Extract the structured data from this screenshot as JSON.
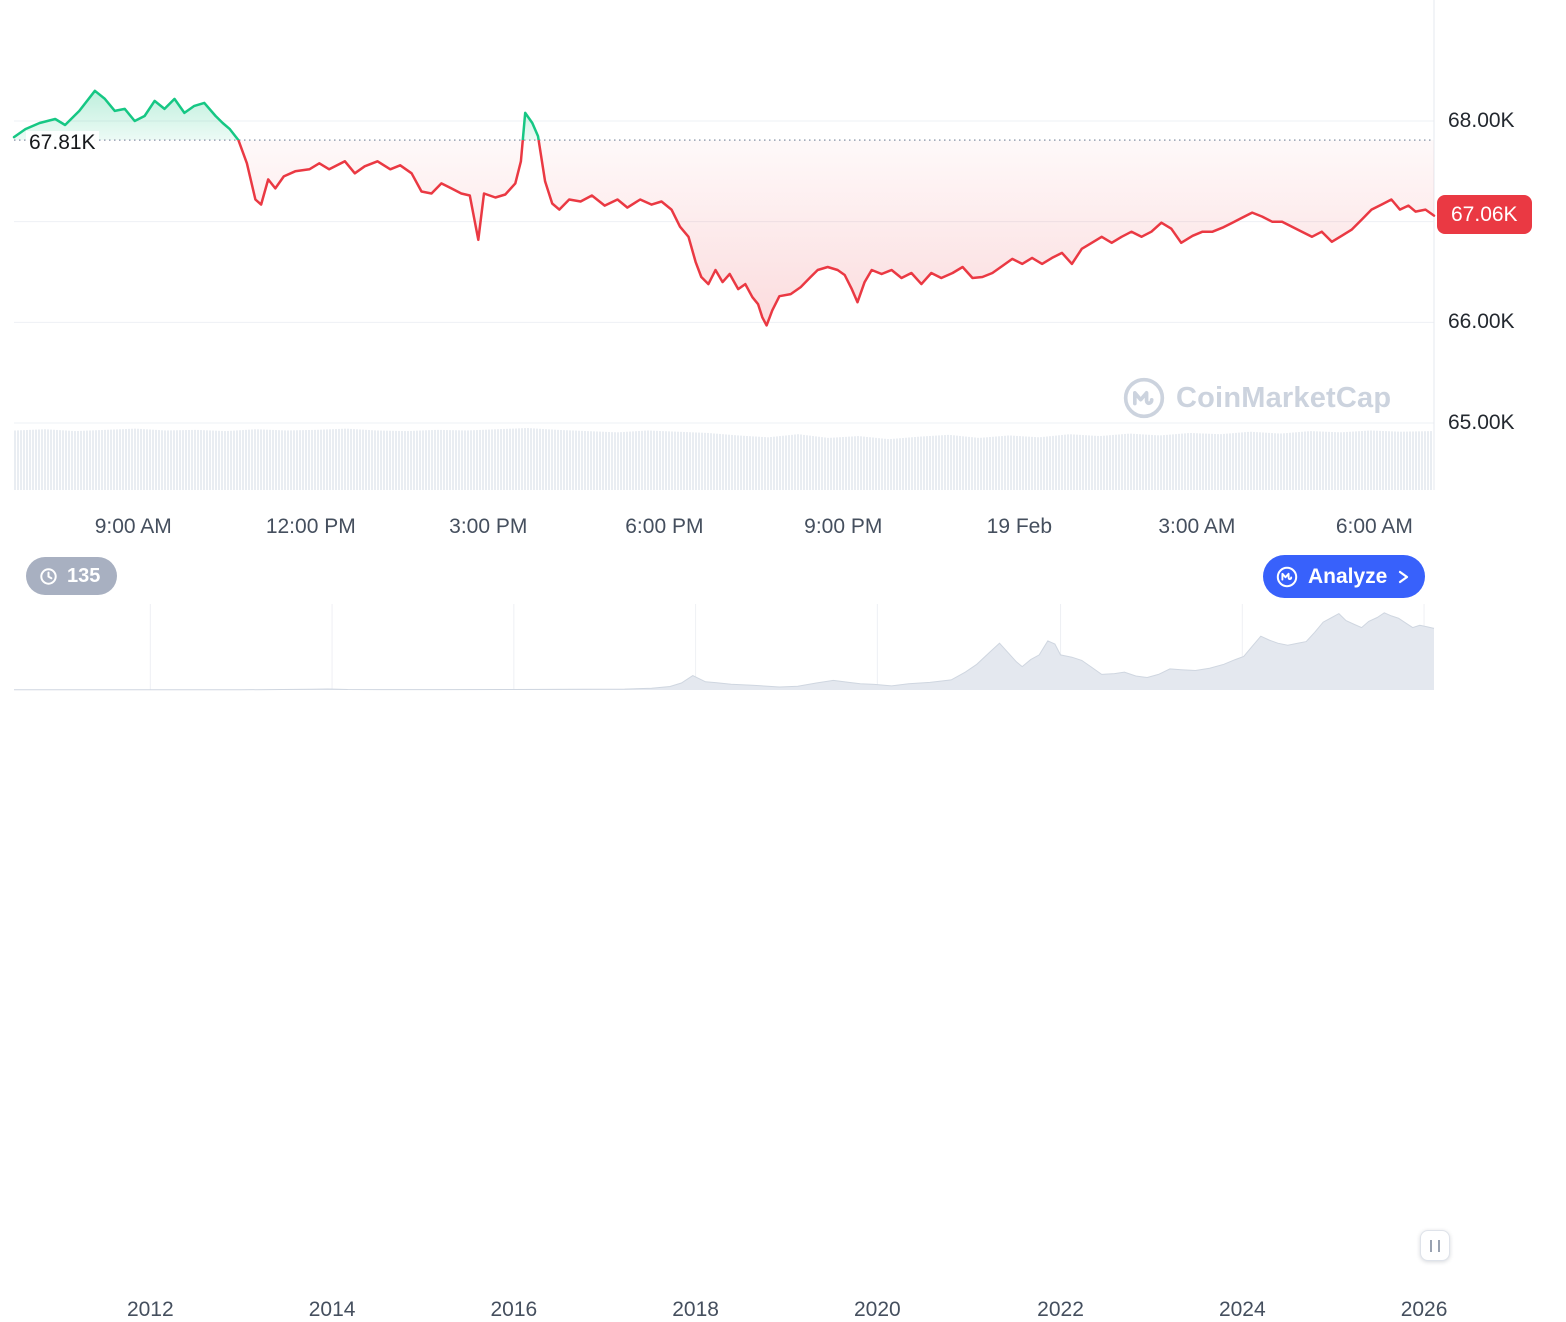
{
  "chart_data": {
    "type": "line",
    "title": "Cryptocurrency intraday price chart with baseline comparison, volume bars and multi-year navigator",
    "legend_position": "none",
    "grid": true,
    "main": {
      "unit": "K USD",
      "ylim": [
        64.8,
        68.6
      ],
      "baseline": {
        "value": 67.81,
        "label": "67.81K"
      },
      "current": {
        "value": 67.06,
        "label": "67.06K"
      },
      "colors": {
        "up": "#16c784",
        "down": "#ea3943",
        "baseline_dots": "#97a1b2"
      },
      "y_grid": [
        68,
        67,
        66,
        65
      ],
      "y_ticks": [
        {
          "value": 68,
          "label": "68.00K"
        },
        {
          "value": 66,
          "label": "66.00K"
        },
        {
          "value": 65,
          "label": "65.00K"
        }
      ],
      "x_ticks": [
        {
          "t": 0.084,
          "label": "9:00 AM"
        },
        {
          "t": 0.209,
          "label": "12:00 PM"
        },
        {
          "t": 0.334,
          "label": "3:00 PM"
        },
        {
          "t": 0.458,
          "label": "6:00 PM"
        },
        {
          "t": 0.584,
          "label": "9:00 PM"
        },
        {
          "t": 0.708,
          "label": "19 Feb"
        },
        {
          "t": 0.833,
          "label": "3:00 AM"
        },
        {
          "t": 0.958,
          "label": "6:00 AM"
        }
      ],
      "series": [
        [
          0.0,
          67.84
        ],
        [
          0.008,
          67.92
        ],
        [
          0.018,
          67.98
        ],
        [
          0.029,
          68.02
        ],
        [
          0.036,
          67.96
        ],
        [
          0.046,
          68.1
        ],
        [
          0.057,
          68.3
        ],
        [
          0.064,
          68.22
        ],
        [
          0.071,
          68.1
        ],
        [
          0.078,
          68.12
        ],
        [
          0.085,
          68.0
        ],
        [
          0.092,
          68.05
        ],
        [
          0.099,
          68.2
        ],
        [
          0.106,
          68.12
        ],
        [
          0.113,
          68.22
        ],
        [
          0.12,
          68.08
        ],
        [
          0.127,
          68.15
        ],
        [
          0.134,
          68.18
        ],
        [
          0.142,
          68.05
        ],
        [
          0.147,
          67.98
        ],
        [
          0.152,
          67.92
        ],
        [
          0.158,
          67.81
        ],
        [
          0.164,
          67.58
        ],
        [
          0.17,
          67.22
        ],
        [
          0.174,
          67.17
        ],
        [
          0.179,
          67.42
        ],
        [
          0.184,
          67.33
        ],
        [
          0.19,
          67.45
        ],
        [
          0.198,
          67.5
        ],
        [
          0.208,
          67.52
        ],
        [
          0.215,
          67.58
        ],
        [
          0.222,
          67.52
        ],
        [
          0.233,
          67.6
        ],
        [
          0.24,
          67.48
        ],
        [
          0.247,
          67.55
        ],
        [
          0.256,
          67.6
        ],
        [
          0.265,
          67.52
        ],
        [
          0.272,
          67.56
        ],
        [
          0.28,
          67.48
        ],
        [
          0.287,
          67.3
        ],
        [
          0.294,
          67.28
        ],
        [
          0.301,
          67.38
        ],
        [
          0.308,
          67.33
        ],
        [
          0.315,
          67.28
        ],
        [
          0.321,
          67.26
        ],
        [
          0.327,
          66.82
        ],
        [
          0.331,
          67.28
        ],
        [
          0.339,
          67.24
        ],
        [
          0.346,
          67.27
        ],
        [
          0.353,
          67.38
        ],
        [
          0.357,
          67.6
        ],
        [
          0.36,
          68.08
        ],
        [
          0.365,
          67.98
        ],
        [
          0.369,
          67.85
        ],
        [
          0.374,
          67.4
        ],
        [
          0.379,
          67.18
        ],
        [
          0.384,
          67.12
        ],
        [
          0.391,
          67.22
        ],
        [
          0.399,
          67.2
        ],
        [
          0.407,
          67.26
        ],
        [
          0.416,
          67.16
        ],
        [
          0.425,
          67.22
        ],
        [
          0.432,
          67.14
        ],
        [
          0.441,
          67.22
        ],
        [
          0.449,
          67.17
        ],
        [
          0.456,
          67.2
        ],
        [
          0.463,
          67.12
        ],
        [
          0.469,
          66.95
        ],
        [
          0.475,
          66.85
        ],
        [
          0.48,
          66.6
        ],
        [
          0.484,
          66.45
        ],
        [
          0.489,
          66.38
        ],
        [
          0.494,
          66.52
        ],
        [
          0.499,
          66.4
        ],
        [
          0.504,
          66.48
        ],
        [
          0.51,
          66.33
        ],
        [
          0.515,
          66.38
        ],
        [
          0.52,
          66.25
        ],
        [
          0.524,
          66.18
        ],
        [
          0.527,
          66.05
        ],
        [
          0.53,
          65.97
        ],
        [
          0.534,
          66.12
        ],
        [
          0.539,
          66.26
        ],
        [
          0.547,
          66.28
        ],
        [
          0.554,
          66.35
        ],
        [
          0.561,
          66.45
        ],
        [
          0.566,
          66.52
        ],
        [
          0.573,
          66.55
        ],
        [
          0.58,
          66.52
        ],
        [
          0.585,
          66.47
        ],
        [
          0.59,
          66.33
        ],
        [
          0.594,
          66.2
        ],
        [
          0.599,
          66.4
        ],
        [
          0.604,
          66.52
        ],
        [
          0.611,
          66.48
        ],
        [
          0.618,
          66.52
        ],
        [
          0.625,
          66.44
        ],
        [
          0.632,
          66.49
        ],
        [
          0.639,
          66.38
        ],
        [
          0.646,
          66.49
        ],
        [
          0.653,
          66.44
        ],
        [
          0.661,
          66.49
        ],
        [
          0.668,
          66.55
        ],
        [
          0.675,
          66.44
        ],
        [
          0.682,
          66.45
        ],
        [
          0.689,
          66.49
        ],
        [
          0.696,
          66.56
        ],
        [
          0.703,
          66.63
        ],
        [
          0.71,
          66.58
        ],
        [
          0.717,
          66.64
        ],
        [
          0.724,
          66.58
        ],
        [
          0.731,
          66.64
        ],
        [
          0.738,
          66.69
        ],
        [
          0.745,
          66.58
        ],
        [
          0.752,
          66.73
        ],
        [
          0.759,
          66.79
        ],
        [
          0.766,
          66.85
        ],
        [
          0.773,
          66.79
        ],
        [
          0.78,
          66.85
        ],
        [
          0.787,
          66.9
        ],
        [
          0.794,
          66.85
        ],
        [
          0.801,
          66.9
        ],
        [
          0.808,
          66.99
        ],
        [
          0.815,
          66.93
        ],
        [
          0.822,
          66.79
        ],
        [
          0.83,
          66.86
        ],
        [
          0.837,
          66.9
        ],
        [
          0.844,
          66.9
        ],
        [
          0.851,
          66.94
        ],
        [
          0.858,
          66.99
        ],
        [
          0.865,
          67.04
        ],
        [
          0.872,
          67.09
        ],
        [
          0.879,
          67.05
        ],
        [
          0.886,
          67.0
        ],
        [
          0.893,
          67.0
        ],
        [
          0.9,
          66.95
        ],
        [
          0.907,
          66.9
        ],
        [
          0.914,
          66.85
        ],
        [
          0.921,
          66.9
        ],
        [
          0.928,
          66.8
        ],
        [
          0.935,
          66.86
        ],
        [
          0.942,
          66.92
        ],
        [
          0.949,
          67.02
        ],
        [
          0.956,
          67.12
        ],
        [
          0.963,
          67.17
        ],
        [
          0.97,
          67.22
        ],
        [
          0.976,
          67.12
        ],
        [
          0.982,
          67.16
        ],
        [
          0.987,
          67.1
        ],
        [
          0.994,
          67.12
        ],
        [
          1.0,
          67.06
        ]
      ],
      "volume_normalized": [
        0.96,
        0.98,
        0.95,
        0.97,
        0.99,
        0.96,
        0.97,
        0.95,
        0.98,
        0.96,
        0.97,
        0.99,
        0.96,
        0.95,
        0.97,
        0.96,
        0.98,
        1.0,
        0.97,
        0.95,
        0.93,
        0.96,
        0.94,
        0.92,
        0.88,
        0.85,
        0.9,
        0.84,
        0.87,
        0.82,
        0.86,
        0.89,
        0.84,
        0.88,
        0.85,
        0.9,
        0.87,
        0.91,
        0.88,
        0.92,
        0.9,
        0.94,
        0.91,
        0.95,
        0.93,
        0.96,
        0.94,
        0.95
      ]
    },
    "navigator": {
      "ylim": [
        0,
        1
      ],
      "values_normalized": true,
      "x_ticks": [
        {
          "t": 0.096,
          "label": "2012"
        },
        {
          "t": 0.224,
          "label": "2014"
        },
        {
          "t": 0.352,
          "label": "2016"
        },
        {
          "t": 0.48,
          "label": "2018"
        },
        {
          "t": 0.608,
          "label": "2020"
        },
        {
          "t": 0.737,
          "label": "2022"
        },
        {
          "t": 0.865,
          "label": "2024"
        },
        {
          "t": 0.993,
          "label": "2026"
        }
      ],
      "series": [
        [
          0.0,
          0.002
        ],
        [
          0.1,
          0.002
        ],
        [
          0.16,
          0.003
        ],
        [
          0.21,
          0.01
        ],
        [
          0.221,
          0.013
        ],
        [
          0.235,
          0.007
        ],
        [
          0.26,
          0.005
        ],
        [
          0.3,
          0.005
        ],
        [
          0.352,
          0.007
        ],
        [
          0.4,
          0.009
        ],
        [
          0.43,
          0.012
        ],
        [
          0.449,
          0.022
        ],
        [
          0.462,
          0.045
        ],
        [
          0.47,
          0.09
        ],
        [
          0.478,
          0.185
        ],
        [
          0.487,
          0.105
        ],
        [
          0.495,
          0.092
        ],
        [
          0.505,
          0.075
        ],
        [
          0.52,
          0.062
        ],
        [
          0.539,
          0.038
        ],
        [
          0.552,
          0.048
        ],
        [
          0.565,
          0.09
        ],
        [
          0.577,
          0.123
        ],
        [
          0.588,
          0.098
        ],
        [
          0.596,
          0.08
        ],
        [
          0.606,
          0.072
        ],
        [
          0.618,
          0.052
        ],
        [
          0.63,
          0.08
        ],
        [
          0.645,
          0.098
        ],
        [
          0.66,
          0.13
        ],
        [
          0.67,
          0.23
        ],
        [
          0.678,
          0.33
        ],
        [
          0.688,
          0.5
        ],
        [
          0.694,
          0.6
        ],
        [
          0.7,
          0.48
        ],
        [
          0.706,
          0.36
        ],
        [
          0.71,
          0.3
        ],
        [
          0.716,
          0.39
        ],
        [
          0.722,
          0.45
        ],
        [
          0.728,
          0.63
        ],
        [
          0.733,
          0.59
        ],
        [
          0.737,
          0.45
        ],
        [
          0.745,
          0.42
        ],
        [
          0.752,
          0.38
        ],
        [
          0.759,
          0.29
        ],
        [
          0.766,
          0.2
        ],
        [
          0.775,
          0.21
        ],
        [
          0.782,
          0.23
        ],
        [
          0.79,
          0.18
        ],
        [
          0.798,
          0.16
        ],
        [
          0.806,
          0.2
        ],
        [
          0.814,
          0.27
        ],
        [
          0.822,
          0.26
        ],
        [
          0.832,
          0.25
        ],
        [
          0.842,
          0.28
        ],
        [
          0.852,
          0.33
        ],
        [
          0.86,
          0.39
        ],
        [
          0.866,
          0.43
        ],
        [
          0.872,
          0.56
        ],
        [
          0.878,
          0.69
        ],
        [
          0.884,
          0.64
        ],
        [
          0.89,
          0.6
        ],
        [
          0.897,
          0.575
        ],
        [
          0.904,
          0.6
        ],
        [
          0.91,
          0.62
        ],
        [
          0.916,
          0.74
        ],
        [
          0.922,
          0.87
        ],
        [
          0.928,
          0.93
        ],
        [
          0.933,
          0.98
        ],
        [
          0.938,
          0.89
        ],
        [
          0.944,
          0.84
        ],
        [
          0.949,
          0.8
        ],
        [
          0.954,
          0.88
        ],
        [
          0.96,
          0.93
        ],
        [
          0.965,
          0.99
        ],
        [
          0.97,
          0.95
        ],
        [
          0.975,
          0.92
        ],
        [
          0.98,
          0.86
        ],
        [
          0.985,
          0.8
        ],
        [
          0.99,
          0.83
        ],
        [
          0.995,
          0.81
        ],
        [
          1.0,
          0.79
        ]
      ]
    }
  },
  "controls": {
    "history_count": "135",
    "analyze_label": "Analyze"
  },
  "watermark": {
    "text": "CoinMarketCap"
  },
  "colors": {
    "accent_blue": "#3861fb",
    "up_green": "#16c784",
    "down_red": "#ea3943",
    "badge_gray": "#a8b0c1",
    "grid": "#eef0f4",
    "volume_bar": "#e9edf2",
    "navigator_fill": "#e4e8ef",
    "watermark_gray": "#ccd3de"
  }
}
